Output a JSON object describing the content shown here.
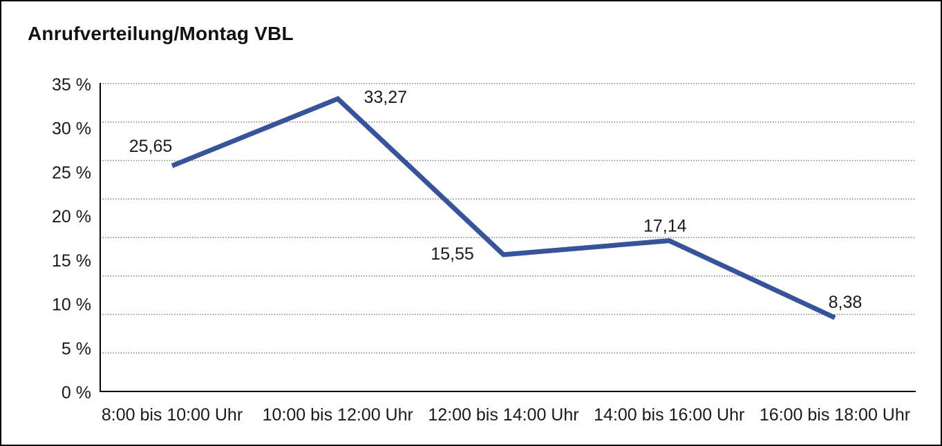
{
  "title": "Anrufverteilung/Montag VBL",
  "colors": {
    "line": "#37539b",
    "grid": "#6b6b6b",
    "axis": "#000000",
    "text": "#1a1a1a",
    "background": "#ffffff",
    "border": "#000000"
  },
  "chart_data": {
    "type": "line",
    "title": "Anrufverteilung/Montag VBL",
    "categories": [
      "8:00 bis 10:00 Uhr",
      "10:00 bis 12:00 Uhr",
      "12:00 bis 14:00 Uhr",
      "14:00 bis 16:00 Uhr",
      "16:00 bis 18:00 Uhr"
    ],
    "values": [
      25.65,
      33.27,
      15.55,
      17.14,
      8.38
    ],
    "point_labels": [
      "25,65",
      "33,27",
      "15,55",
      "17,14",
      "8,38"
    ],
    "y_ticks": [
      35,
      30,
      25,
      20,
      15,
      10,
      5,
      0
    ],
    "y_tick_labels": [
      "35 %",
      "30 %",
      "25 %",
      "20 %",
      "15 %",
      "10 %",
      "5 %",
      "0 %"
    ],
    "ylim": [
      0,
      35
    ],
    "xlabel": "",
    "ylabel": "",
    "legend": "none",
    "grid": "horizontal-dotted",
    "gridline_intervals": 8
  }
}
